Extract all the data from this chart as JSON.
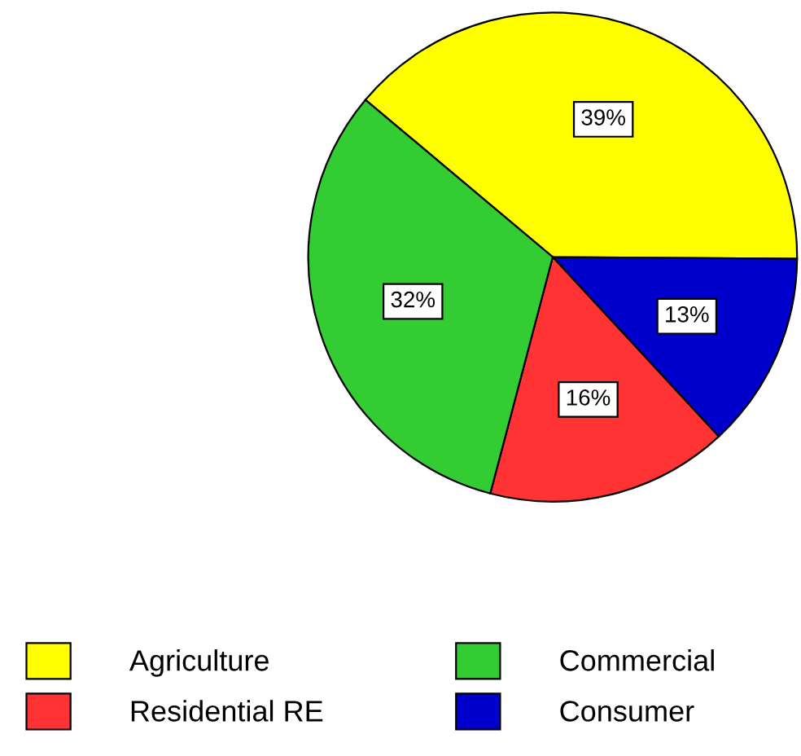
{
  "chart_data": {
    "type": "pie",
    "categories": [
      "Agriculture",
      "Consumer",
      "Residential RE",
      "Commercial"
    ],
    "values": [
      39,
      13,
      16,
      32
    ],
    "value_labels": [
      "39%",
      "13%",
      "16%",
      "32%"
    ],
    "colors": [
      "#ffff00",
      "#0000cc",
      "#ff3333",
      "#33cc33"
    ],
    "legend": "bottom"
  }
}
